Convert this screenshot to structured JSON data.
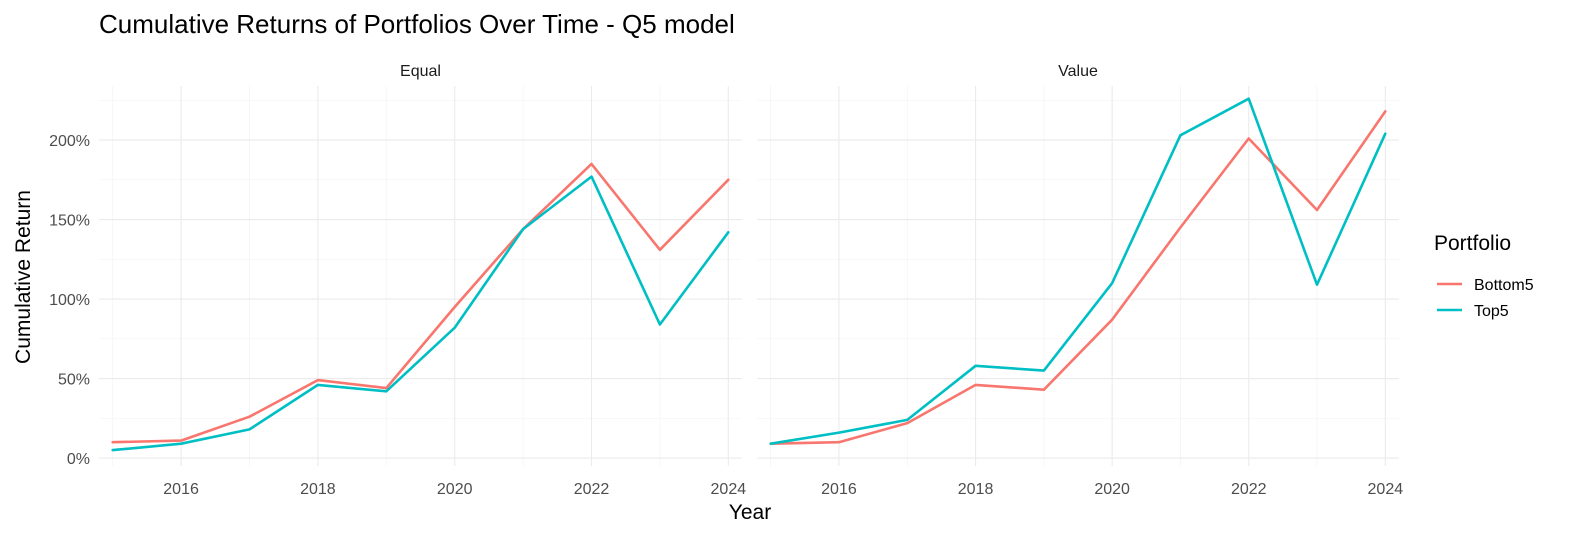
{
  "chart_data": {
    "type": "line",
    "title": "Cumulative Returns of Portfolios Over Time - Q5 model",
    "xlabel": "Year",
    "ylabel": "Cumulative Return",
    "xlim": [
      2014.8,
      2024.2
    ],
    "ylim": [
      -0.05,
      2.34
    ],
    "x_ticks": [
      2016,
      2018,
      2020,
      2022,
      2024
    ],
    "y_ticks": [
      0,
      0.5,
      1.0,
      1.5,
      2.0
    ],
    "y_tick_labels": [
      "0%",
      "50%",
      "100%",
      "150%",
      "200%"
    ],
    "grid": true,
    "legend": {
      "title": "Portfolio",
      "position": "right",
      "entries": [
        {
          "name": "Bottom5",
          "color": "#F8766D"
        },
        {
          "name": "Top5",
          "color": "#00BFC4"
        }
      ]
    },
    "panels": [
      {
        "label": "Equal",
        "x": [
          2015,
          2016,
          2017,
          2018,
          2019,
          2020,
          2021,
          2022,
          2023,
          2024
        ],
        "series": [
          {
            "name": "Bottom5",
            "color": "#F8766D",
            "values": [
              0.1,
              0.11,
              0.26,
              0.49,
              0.44,
              0.95,
              1.44,
              1.85,
              1.31,
              1.75
            ]
          },
          {
            "name": "Top5",
            "color": "#00BFC4",
            "values": [
              0.05,
              0.09,
              0.18,
              0.46,
              0.42,
              0.82,
              1.44,
              1.77,
              0.84,
              1.42
            ]
          }
        ]
      },
      {
        "label": "Value",
        "x": [
          2015,
          2016,
          2017,
          2018,
          2019,
          2020,
          2021,
          2022,
          2023,
          2024
        ],
        "series": [
          {
            "name": "Bottom5",
            "color": "#F8766D",
            "values": [
              0.09,
              0.1,
              0.22,
              0.46,
              0.43,
              0.87,
              1.45,
              2.01,
              1.56,
              2.18
            ]
          },
          {
            "name": "Top5",
            "color": "#00BFC4",
            "values": [
              0.09,
              0.16,
              0.24,
              0.58,
              0.55,
              1.1,
              2.03,
              2.26,
              1.09,
              2.04
            ]
          }
        ]
      }
    ]
  }
}
